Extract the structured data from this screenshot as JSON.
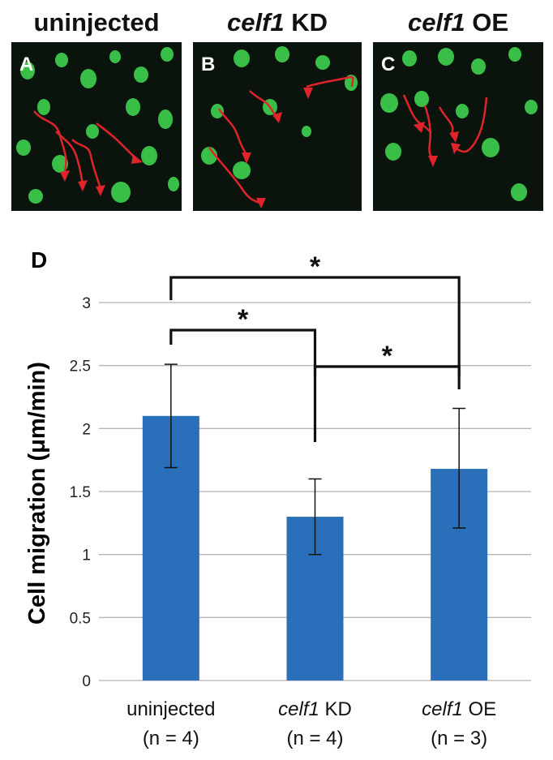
{
  "panels": [
    {
      "letter": "A",
      "title": "uninjected",
      "title_italic": "",
      "title_rest": ""
    },
    {
      "letter": "B",
      "title": "",
      "title_italic": "celf1",
      "title_rest": " KD"
    },
    {
      "letter": "C",
      "title": "",
      "title_italic": "celf1",
      "title_rest": " OE"
    }
  ],
  "colors": {
    "bar": "#2a6fba",
    "cell": "#3fd24f",
    "track": "#e0242b",
    "grid": "#b5b5b5"
  },
  "chart_data": {
    "type": "bar",
    "panel_label": "D",
    "ylabel": "Cell migration  (μm/min)",
    "ylim": [
      0,
      3
    ],
    "yticks": [
      0,
      0.5,
      1,
      1.5,
      2,
      2.5,
      3
    ],
    "ytick_labels": [
      "0",
      "0.5",
      "1",
      "1.5",
      "2",
      "2.5",
      "3"
    ],
    "grid": true,
    "categories": [
      {
        "italic": "",
        "rest": "uninjected",
        "n": "(n = 4)"
      },
      {
        "italic": "celf1",
        "rest": " KD",
        "n": "(n = 4)"
      },
      {
        "italic": "celf1",
        "rest": " OE",
        "n": "(n = 3)"
      }
    ],
    "values": [
      2.1,
      1.3,
      1.68
    ],
    "errors": [
      [
        1.69,
        2.51
      ],
      [
        1.0,
        1.6
      ],
      [
        1.21,
        2.16
      ]
    ],
    "significance": [
      {
        "pair": [
          0,
          2
        ],
        "label": "*"
      },
      {
        "pair": [
          0,
          1
        ],
        "label": "*"
      },
      {
        "pair": [
          1,
          2
        ],
        "label": "*"
      }
    ]
  }
}
